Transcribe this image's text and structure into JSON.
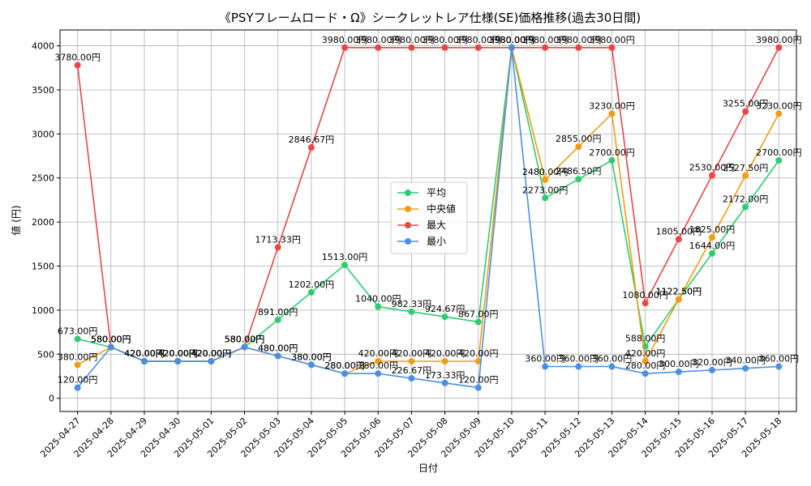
{
  "chart_data": {
    "type": "line",
    "title": "《PSYフレームロード・Ω》シークレットレア仕様(SE)価格推移(過去30日間)",
    "xlabel": "日付",
    "ylabel": "値 (円)",
    "ylim": [
      -150,
      4180
    ],
    "yticks": [
      0,
      500,
      1000,
      1500,
      2000,
      2500,
      3000,
      3500,
      4000
    ],
    "grid": true,
    "legend_position": "center",
    "label_suffix": "円",
    "categories": [
      "2025-04-27",
      "2025-04-28",
      "2025-04-29",
      "2025-04-30",
      "2025-05-01",
      "2025-05-02",
      "2025-05-03",
      "2025-05-04",
      "2025-05-05",
      "2025-05-06",
      "2025-05-07",
      "2025-05-08",
      "2025-05-09",
      "2025-05-10",
      "2025-05-11",
      "2025-05-12",
      "2025-05-13",
      "2025-05-14",
      "2025-05-15",
      "2025-05-16",
      "2025-05-17",
      "2025-05-18"
    ],
    "series": [
      {
        "name": "平均",
        "color": "#2ecc71",
        "values": [
          673.0,
          580.0,
          420.0,
          420.0,
          420.0,
          580.0,
          891.0,
          1202.0,
          1513.0,
          1040.0,
          982.33,
          924.67,
          867.0,
          3980.0,
          2273.0,
          2486.5,
          2700.0,
          588.0,
          1122.5,
          1644.0,
          2172.0,
          2700.0
        ]
      },
      {
        "name": "中央値",
        "color": "#f39c12",
        "values": [
          380.0,
          580.0,
          420.0,
          420.0,
          420.0,
          580.0,
          480.0,
          380.0,
          280.0,
          420.0,
          420.0,
          420.0,
          420.0,
          3980.0,
          2480.0,
          2855.0,
          3230.0,
          420.0,
          1122.5,
          1825.0,
          2527.5,
          3230.0
        ]
      },
      {
        "name": "最大",
        "color": "#ef4444",
        "values": [
          3780.0,
          580.0,
          420.0,
          420.0,
          420.0,
          580.0,
          1713.33,
          2846.67,
          3980.0,
          3980.0,
          3980.0,
          3980.0,
          3980.0,
          3980.0,
          3980.0,
          3980.0,
          3980.0,
          1080.0,
          1805.0,
          2530.0,
          3255.0,
          3980.0
        ]
      },
      {
        "name": "最小",
        "color": "#4a90e2",
        "values": [
          120.0,
          580.0,
          420.0,
          420.0,
          420.0,
          580.0,
          480.0,
          380.0,
          280.0,
          280.0,
          226.67,
          173.33,
          120.0,
          3980.0,
          360.0,
          360.0,
          360.0,
          280.0,
          300.0,
          320.0,
          340.0,
          360.0
        ]
      }
    ]
  }
}
